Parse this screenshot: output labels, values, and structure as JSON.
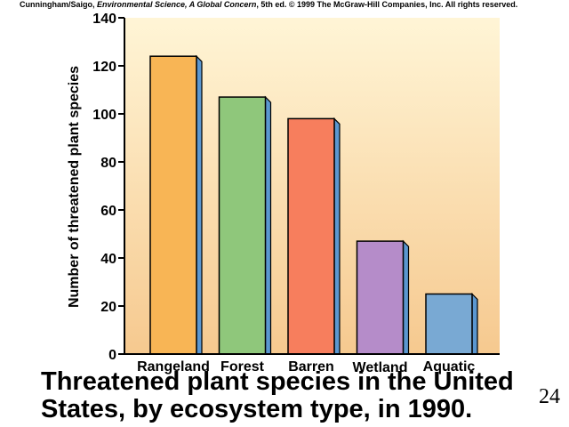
{
  "credit": {
    "authors": "Cunningham/Saigo, ",
    "book": "Environmental Science, A Global Concern",
    "rest": ", 5th ed. © 1999 The McGraw-Hill Companies, Inc. All rights reserved."
  },
  "caption": "Threatened plant species in the United States, by ecosystem type, in 1990.",
  "page_number": "24",
  "colors": {
    "plot_bg_top": "#fff5d6",
    "plot_bg_bottom": "#f6c98f",
    "bar_outline": "#000000",
    "shadow": "#5b97d0"
  },
  "chart_data": {
    "type": "bar",
    "title": "",
    "xlabel": "",
    "ylabel": "Number of threatened plant species",
    "ylim": [
      0,
      140
    ],
    "yticks": [
      0,
      20,
      40,
      60,
      80,
      100,
      120,
      140
    ],
    "grid": false,
    "categories": [
      "Rangeland",
      "Forest",
      "Barren",
      "Wetland",
      "Aquatic"
    ],
    "values": [
      124,
      107,
      98,
      47,
      25
    ],
    "bar_colors": [
      "#f8b555",
      "#8fc77b",
      "#f77e5d",
      "#b58cc9",
      "#79a9d3"
    ]
  }
}
